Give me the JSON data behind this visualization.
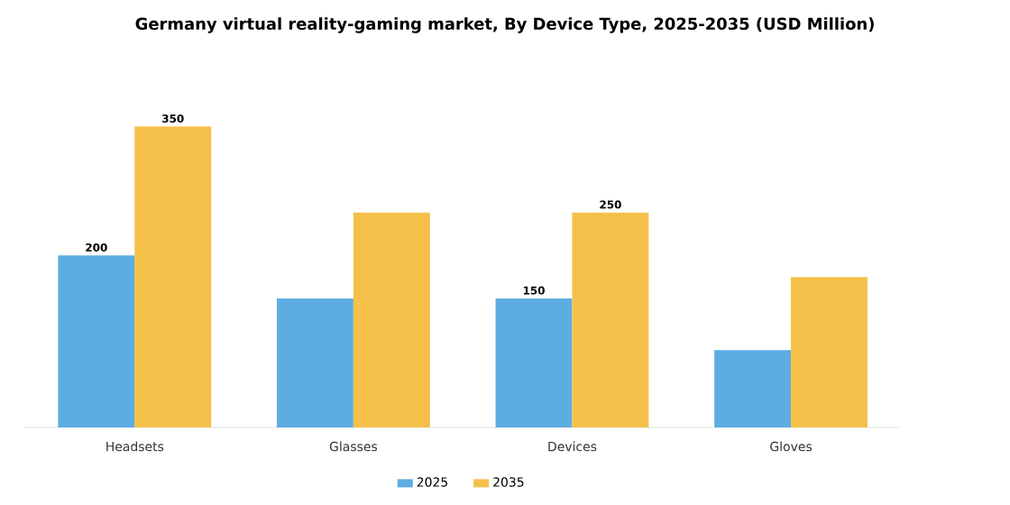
{
  "chart_data": {
    "type": "bar",
    "title": "Germany virtual reality-gaming market, By Device Type, 2025-2035 (USD Million)",
    "categories": [
      "Headsets",
      "Glasses",
      "Devices",
      "Gloves"
    ],
    "series": [
      {
        "name": "2025",
        "color": "#5dade2",
        "values": [
          200,
          150,
          150,
          90
        ],
        "value_labels": [
          "200",
          null,
          "150",
          null
        ]
      },
      {
        "name": "2035",
        "color": "#f5c04a",
        "values": [
          350,
          250,
          250,
          175
        ],
        "value_labels": [
          "350",
          null,
          "250",
          null
        ]
      }
    ],
    "legend": "bottom"
  }
}
